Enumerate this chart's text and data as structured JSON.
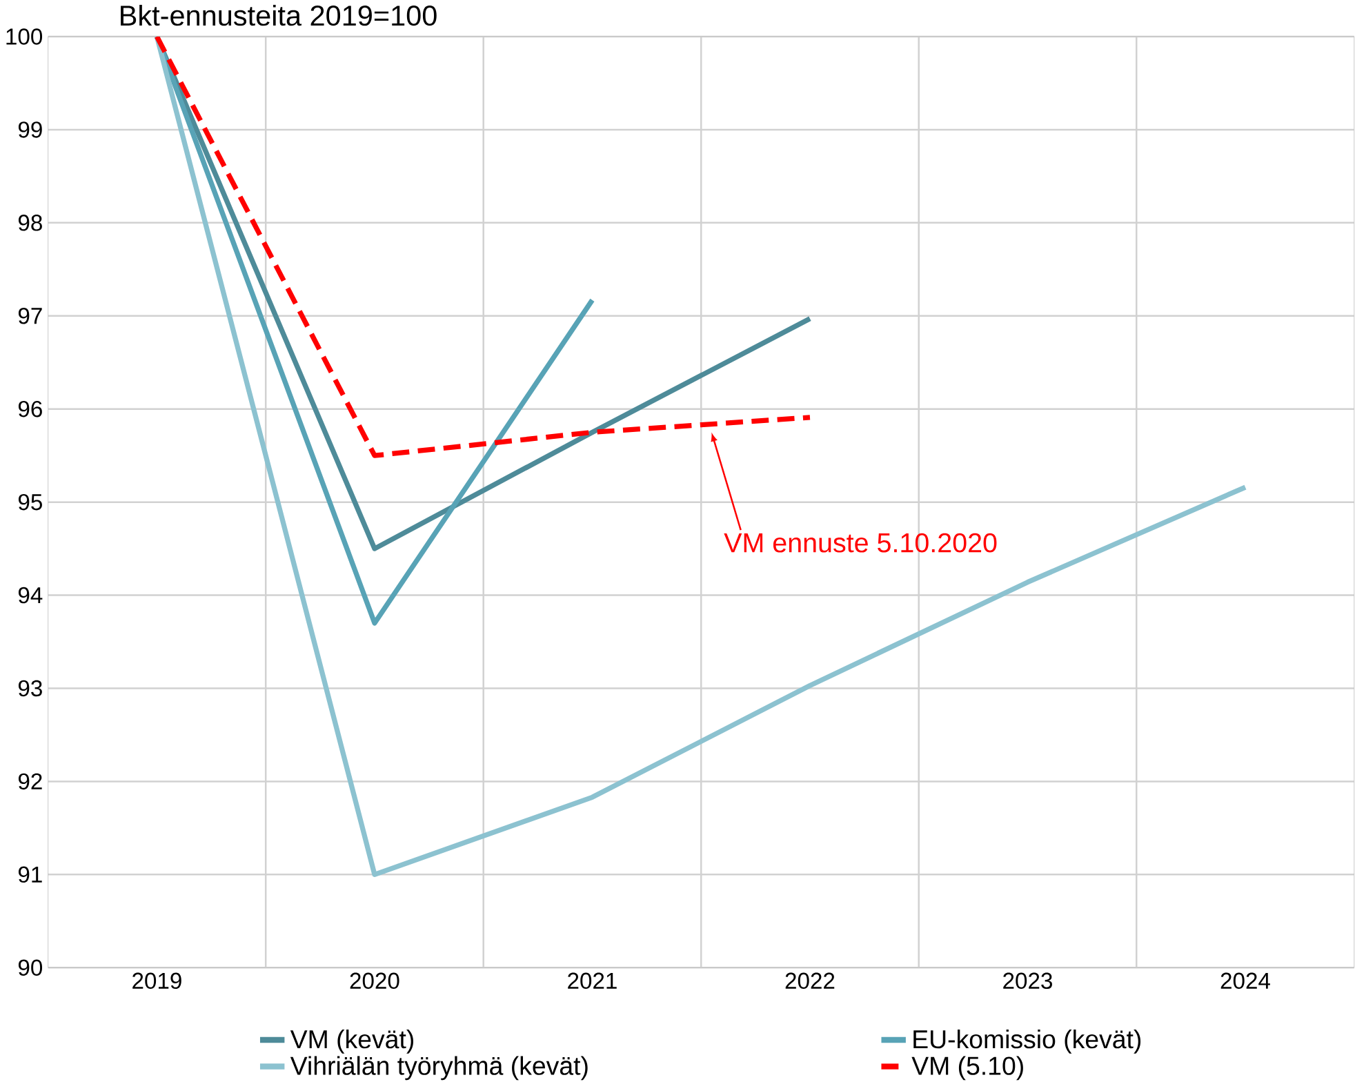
{
  "chart_data": {
    "type": "line",
    "title": "Bkt-ennusteita 2019=100",
    "categories": [
      "2019",
      "2020",
      "2021",
      "2022",
      "2023",
      "2024"
    ],
    "series": [
      {
        "name": "VM (kevät)",
        "color": "#4e8b99",
        "values": [
          100,
          94.5,
          95.75,
          96.97,
          null,
          null
        ]
      },
      {
        "name": "EU-komissio (kevät)",
        "color": "#58a3b6",
        "values": [
          100,
          93.7,
          97.17,
          null,
          null,
          null
        ]
      },
      {
        "name": "Vihriälän työryhmä (kevät)",
        "color": "#8cc2d0",
        "values": [
          100,
          91.0,
          91.83,
          93.03,
          94.14,
          95.16
        ]
      },
      {
        "name": "VM (5.10)",
        "color": "#ff0000",
        "line_style": "dashed",
        "values": [
          100,
          95.5,
          95.75,
          95.91,
          null,
          null
        ]
      }
    ],
    "ylim": [
      90,
      100
    ],
    "yticks": [
      90,
      91,
      92,
      93,
      94,
      95,
      96,
      97,
      98,
      99,
      100
    ],
    "grid": true,
    "legend": "bottom",
    "marker": "none",
    "line_style": "solid",
    "annotations": [
      "VM ennuste 5.10.2020"
    ]
  }
}
